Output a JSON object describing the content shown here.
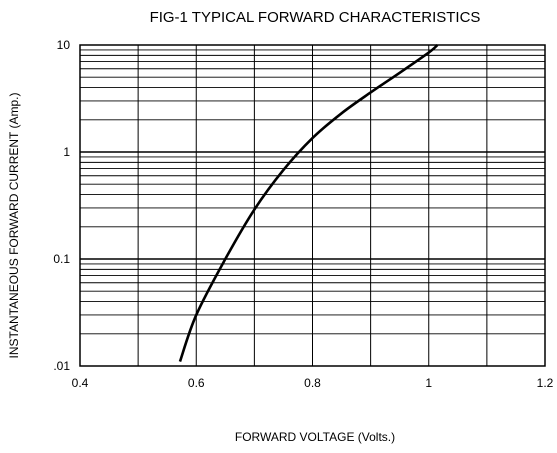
{
  "chart_data": {
    "type": "line",
    "title": "FIG-1 TYPICAL FORWARD CHARACTERISTICS",
    "xlabel": "FORWARD VOLTAGE (Volts.)",
    "ylabel": "INSTANTANEOUS FORWARD CURRENT (Amp.)",
    "xlim": [
      0.4,
      1.2
    ],
    "ylim": [
      0.01,
      10
    ],
    "yscale": "log",
    "grid": true,
    "x_ticks": [
      0.4,
      0.6,
      0.8,
      1.0,
      1.2
    ],
    "x_tick_labels": [
      "0.4",
      "0.6",
      "0.8",
      "1",
      "1.2"
    ],
    "y_ticks": [
      0.01,
      0.1,
      1,
      10
    ],
    "y_tick_labels": [
      ".01",
      "0.1",
      "1",
      "10"
    ],
    "series": [
      {
        "x": [
          0.572,
          0.6,
          0.65,
          0.7,
          0.75,
          0.8,
          0.85,
          0.9,
          0.95,
          1.0,
          1.015
        ],
        "y": [
          0.011,
          0.03,
          0.1,
          0.29,
          0.68,
          1.35,
          2.3,
          3.6,
          5.5,
          8.5,
          10.0
        ]
      }
    ]
  }
}
